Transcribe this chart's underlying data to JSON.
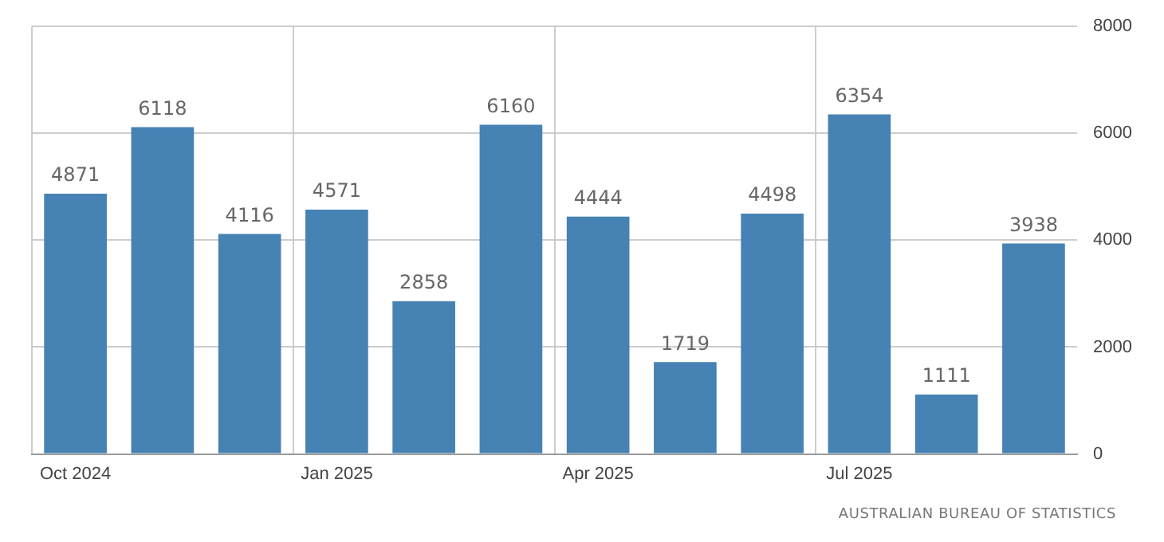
{
  "chart_data": {
    "type": "bar",
    "categories": [
      "Oct 2024",
      null,
      null,
      "Jan 2025",
      null,
      null,
      "Apr 2025",
      null,
      null,
      "Jul 2025",
      null,
      null
    ],
    "values": [
      4871,
      6118,
      4116,
      4571,
      2858,
      6160,
      4444,
      1719,
      4498,
      6354,
      1111,
      3938
    ],
    "color": "#4682b4",
    "ylim": [
      0,
      8000
    ],
    "yticks": [
      0,
      2000,
      4000,
      6000,
      8000
    ],
    "grid": true,
    "data_labels": true,
    "annotations": [
      "AUSTRALIAN BUREAU OF STATISTICS"
    ]
  }
}
